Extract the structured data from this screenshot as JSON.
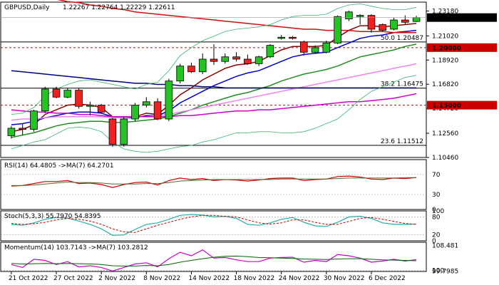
{
  "chart_data": [
    {
      "type": "candlestick",
      "title": "GBPUSD,Daily",
      "ohlc_header": "1.22267 1.22764 1.22229 1.22611",
      "ylim": [
        1.1046,
        1.2395
      ],
      "yticks": [
        "1.23180",
        "1.21020",
        "1.18920",
        "1.16820",
        "1.14720",
        "1.12560",
        "1.10460"
      ],
      "xticks": [
        "21 Oct 2022",
        "27 Oct 2022",
        "2 Nov 2022",
        "8 Nov 2022",
        "14 Nov 2022",
        "18 Nov 2022",
        "24 Nov 2022",
        "30 Nov 2022",
        "6 Dec 2022"
      ],
      "xtick_index": [
        0,
        4,
        8,
        12,
        16,
        20,
        24,
        28,
        32
      ],
      "colors": {
        "bull": "#22c322",
        "bear": "#ee2222"
      },
      "candles": [
        {
          "o": 1.1235,
          "h": 1.132,
          "l": 1.121,
          "c": 1.13
        },
        {
          "o": 1.13,
          "h": 1.134,
          "l": 1.124,
          "c": 1.129
        },
        {
          "o": 1.129,
          "h": 1.146,
          "l": 1.127,
          "c": 1.145
        },
        {
          "o": 1.145,
          "h": 1.166,
          "l": 1.143,
          "c": 1.164
        },
        {
          "o": 1.164,
          "h": 1.166,
          "l": 1.156,
          "c": 1.157
        },
        {
          "o": 1.157,
          "h": 1.165,
          "l": 1.156,
          "c": 1.163
        },
        {
          "o": 1.163,
          "h": 1.165,
          "l": 1.147,
          "c": 1.149
        },
        {
          "o": 1.149,
          "h": 1.153,
          "l": 1.141,
          "c": 1.15
        },
        {
          "o": 1.15,
          "h": 1.151,
          "l": 1.143,
          "c": 1.144
        },
        {
          "o": 1.138,
          "h": 1.139,
          "l": 1.114,
          "c": 1.116
        },
        {
          "o": 1.116,
          "h": 1.14,
          "l": 1.114,
          "c": 1.138
        },
        {
          "o": 1.138,
          "h": 1.152,
          "l": 1.136,
          "c": 1.15
        },
        {
          "o": 1.15,
          "h": 1.157,
          "l": 1.148,
          "c": 1.153
        },
        {
          "o": 1.153,
          "h": 1.156,
          "l": 1.137,
          "c": 1.138
        },
        {
          "o": 1.138,
          "h": 1.173,
          "l": 1.136,
          "c": 1.171
        },
        {
          "o": 1.171,
          "h": 1.186,
          "l": 1.169,
          "c": 1.184
        },
        {
          "o": 1.184,
          "h": 1.187,
          "l": 1.178,
          "c": 1.179
        },
        {
          "o": 1.179,
          "h": 1.195,
          "l": 1.177,
          "c": 1.19
        },
        {
          "o": 1.19,
          "h": 1.203,
          "l": 1.185,
          "c": 1.188
        },
        {
          "o": 1.188,
          "h": 1.195,
          "l": 1.186,
          "c": 1.192
        },
        {
          "o": 1.192,
          "h": 1.196,
          "l": 1.188,
          "c": 1.19
        },
        {
          "o": 1.19,
          "h": 1.194,
          "l": 1.185,
          "c": 1.186
        },
        {
          "o": 1.186,
          "h": 1.193,
          "l": 1.184,
          "c": 1.192
        },
        {
          "o": 1.192,
          "h": 1.203,
          "l": 1.191,
          "c": 1.202
        },
        {
          "o": 1.208,
          "h": 1.211,
          "l": 1.207,
          "c": 1.209
        },
        {
          "o": 1.209,
          "h": 1.21,
          "l": 1.207,
          "c": 1.208
        },
        {
          "o": 1.205,
          "h": 1.206,
          "l": 1.193,
          "c": 1.196
        },
        {
          "o": 1.196,
          "h": 1.202,
          "l": 1.195,
          "c": 1.2
        },
        {
          "o": 1.196,
          "h": 1.206,
          "l": 1.195,
          "c": 1.204
        },
        {
          "o": 1.204,
          "h": 1.228,
          "l": 1.203,
          "c": 1.227
        },
        {
          "o": 1.225,
          "h": 1.232,
          "l": 1.223,
          "c": 1.231
        },
        {
          "o": 1.227,
          "h": 1.229,
          "l": 1.22,
          "c": 1.228
        },
        {
          "o": 1.228,
          "h": 1.229,
          "l": 1.213,
          "c": 1.216
        },
        {
          "o": 1.22,
          "h": 1.221,
          "l": 1.214,
          "c": 1.215
        },
        {
          "o": 1.216,
          "h": 1.226,
          "l": 1.215,
          "c": 1.224
        },
        {
          "o": 1.224,
          "h": 1.228,
          "l": 1.22,
          "c": 1.222
        },
        {
          "o": 1.2227,
          "h": 1.2276,
          "l": 1.2223,
          "c": 1.2261
        }
      ],
      "overlays": [
        {
          "color": "#8b0000",
          "width": 1.5,
          "values": [
            1.127,
            1.129,
            1.133,
            1.142,
            1.146,
            1.15,
            1.151,
            1.15,
            1.148,
            1.14,
            1.139,
            1.14,
            1.143,
            1.142,
            1.15,
            1.159,
            1.165,
            1.172,
            1.177,
            1.182,
            1.185,
            1.186,
            1.188,
            1.193,
            1.198,
            1.201,
            1.201,
            1.201,
            1.202,
            1.209,
            1.215,
            1.219,
            1.219,
            1.218,
            1.219,
            1.22,
            1.221
          ]
        },
        {
          "color": "#0000cd",
          "width": 1.5,
          "values": [
            1.133,
            1.134,
            1.136,
            1.139,
            1.141,
            1.143,
            1.144,
            1.144,
            1.143,
            1.14,
            1.139,
            1.139,
            1.141,
            1.141,
            1.145,
            1.152,
            1.157,
            1.162,
            1.167,
            1.171,
            1.175,
            1.178,
            1.18,
            1.184,
            1.188,
            1.192,
            1.194,
            1.195,
            1.196,
            1.2,
            1.204,
            1.208,
            1.21,
            1.211,
            1.213,
            1.214,
            1.215
          ]
        },
        {
          "color": "#228b22",
          "width": 1.5,
          "values": [
            1.122,
            1.124,
            1.126,
            1.129,
            1.132,
            1.134,
            1.135,
            1.136,
            1.136,
            1.135,
            1.135,
            1.136,
            1.137,
            1.138,
            1.14,
            1.143,
            1.146,
            1.15,
            1.153,
            1.156,
            1.159,
            1.161,
            1.164,
            1.167,
            1.171,
            1.174,
            1.177,
            1.179,
            1.181,
            1.184,
            1.188,
            1.192,
            1.194,
            1.196,
            1.198,
            1.201,
            1.203
          ]
        },
        {
          "color": "#ee82ee",
          "width": 1.5,
          "values": [
            1.137,
            1.138,
            1.138,
            1.139,
            1.14,
            1.14,
            1.14,
            1.14,
            1.14,
            1.139,
            1.139,
            1.14,
            1.14,
            1.141,
            1.142,
            1.144,
            1.146,
            1.148,
            1.15,
            1.152,
            1.154,
            1.156,
            1.158,
            1.16,
            1.162,
            1.164,
            1.166,
            1.168,
            1.17,
            1.172,
            1.174,
            1.176,
            1.178,
            1.18,
            1.182,
            1.184,
            1.186
          ]
        },
        {
          "color": "#cc00cc",
          "width": 1.5,
          "values": [
            1.146,
            1.145,
            1.144,
            1.144,
            1.143,
            1.143,
            1.142,
            1.142,
            1.141,
            1.14,
            1.14,
            1.14,
            1.14,
            1.14,
            1.14,
            1.141,
            1.141,
            1.142,
            1.143,
            1.144,
            1.145,
            1.145,
            1.146,
            1.146,
            1.147,
            1.148,
            1.149,
            1.15,
            1.151,
            1.152,
            1.153,
            1.153,
            1.154,
            1.155,
            1.156,
            1.158,
            1.16
          ]
        },
        {
          "color": "#cc1111",
          "width": 1.5,
          "values": [
            1.246,
            1.245,
            1.244,
            1.243,
            1.242,
            1.24,
            1.239,
            1.237,
            1.236,
            1.234,
            1.233,
            1.231,
            1.23,
            1.229,
            1.228,
            1.227,
            1.226,
            1.225,
            1.224,
            1.223,
            1.222,
            1.221,
            1.22,
            1.219,
            1.218,
            1.217,
            1.216,
            1.216,
            1.215,
            1.215,
            1.215,
            1.214,
            1.214,
            1.214,
            1.213,
            1.213,
            1.213
          ]
        },
        {
          "color": "#000080",
          "width": 1.5,
          "values": [
            1.18,
            1.179,
            1.178,
            1.177,
            1.176,
            1.175,
            1.174,
            1.173,
            1.172,
            1.171,
            1.17,
            1.169,
            1.169,
            1.168,
            1.168,
            1.167,
            1.167,
            1.166,
            1.166,
            1.165,
            1.165,
            1.165,
            1.165,
            1.165,
            1.165,
            1.165,
            1.165,
            1.165,
            1.165,
            1.165,
            1.165,
            1.165,
            1.165,
            1.165,
            1.165,
            1.165,
            1.165
          ]
        },
        {
          "color": "#3cb371",
          "width": 0.8,
          "values": [
            1.142,
            1.143,
            1.148,
            1.158,
            1.164,
            1.168,
            1.171,
            1.172,
            1.17,
            1.168,
            1.166,
            1.164,
            1.168,
            1.17,
            1.18,
            1.193,
            1.2,
            1.206,
            1.21,
            1.214,
            1.216,
            1.217,
            1.218,
            1.22,
            1.224,
            1.227,
            1.228,
            1.228,
            1.229,
            1.234,
            1.237,
            1.238,
            1.236,
            1.234,
            1.233,
            1.233,
            1.235
          ]
        },
        {
          "color": "#3cb371",
          "width": 0.8,
          "values": [
            1.112,
            1.115,
            1.118,
            1.12,
            1.125,
            1.13,
            1.131,
            1.13,
            1.127,
            1.118,
            1.112,
            1.11,
            1.109,
            1.11,
            1.112,
            1.114,
            1.115,
            1.118,
            1.12,
            1.123,
            1.126,
            1.126,
            1.127,
            1.127,
            1.126,
            1.126,
            1.127,
            1.13,
            1.134,
            1.138,
            1.146,
            1.155,
            1.162,
            1.166,
            1.17,
            1.174,
            1.176
          ]
        }
      ],
      "levels": [
        {
          "value": 1.2,
          "label": "1.20000",
          "color": "#cc0000",
          "style": "dashed"
        },
        {
          "value": 1.15,
          "label": "1.15000",
          "color": "#cc0000",
          "style": "dashed"
        },
        {
          "value": 1.2049,
          "label": "50.0 1.20487",
          "color": "#000000",
          "style": "solid"
        },
        {
          "value": 1.1648,
          "label": "38.2 1.16475",
          "color": "#000000",
          "style": "solid"
        },
        {
          "value": 1.1151,
          "label": "23.6 1.11512",
          "color": "#000000",
          "style": "solid"
        }
      ],
      "last_price": {
        "value": 1.2261,
        "label": "1.22611"
      }
    },
    {
      "type": "line",
      "title": "RSI(14) 64.4805 ->MA(7) 64.2701",
      "ylim": [
        0,
        100
      ],
      "yticks": [
        "70",
        "30",
        "0"
      ],
      "hlines": [
        70,
        30
      ],
      "series": [
        {
          "color": "#cc0000",
          "values": [
            47,
            48,
            52,
            56,
            56,
            58,
            52,
            53,
            50,
            44,
            50,
            54,
            55,
            49,
            58,
            63,
            60,
            62,
            58,
            60,
            59,
            57,
            59,
            62,
            63,
            63,
            58,
            60,
            61,
            66,
            67,
            65,
            61,
            60,
            63,
            62,
            64
          ]
        },
        {
          "color": "#556b2f",
          "values": [
            48,
            48,
            49,
            51,
            53,
            55,
            54,
            54,
            53,
            51,
            51,
            51,
            52,
            52,
            54,
            57,
            58,
            59,
            60,
            60,
            60,
            60,
            60,
            60,
            61,
            61,
            61,
            61,
            61,
            62,
            63,
            63,
            63,
            63,
            63,
            64,
            64
          ]
        }
      ]
    },
    {
      "type": "line",
      "title": "Stoch(5,3,3) 55.7970 54.8395",
      "ylim": [
        0,
        100
      ],
      "yticks": [
        "100",
        "80",
        "20",
        "0"
      ],
      "hlines": [
        80,
        20
      ],
      "series": [
        {
          "color": "#20b2aa",
          "values": [
            55,
            52,
            60,
            72,
            78,
            76,
            66,
            55,
            40,
            18,
            20,
            38,
            55,
            60,
            72,
            85,
            88,
            86,
            80,
            82,
            75,
            55,
            52,
            60,
            72,
            78,
            62,
            50,
            48,
            62,
            80,
            82,
            75,
            60,
            55,
            55,
            56
          ]
        },
        {
          "color": "#cc0000",
          "values": [
            58,
            55,
            57,
            62,
            70,
            75,
            72,
            66,
            55,
            40,
            30,
            28,
            40,
            52,
            62,
            72,
            80,
            85,
            85,
            82,
            80,
            70,
            60,
            56,
            60,
            70,
            70,
            62,
            55,
            55,
            65,
            75,
            78,
            72,
            65,
            58,
            55
          ]
        }
      ]
    },
    {
      "type": "line",
      "title": "Momentum(14) 103.7143 ->MA(7) 103.2812",
      "ylim": [
        99.65,
        109.6
      ],
      "yticks": [
        "108.481",
        "100",
        "99.7985"
      ],
      "hlines": [
        100
      ],
      "series": [
        {
          "color": "#cc00cc",
          "values": [
            102.0,
            101.0,
            103.8,
            103.4,
            102.0,
            103.0,
            101.2,
            101.6,
            101.0,
            99.8,
            101.0,
            102.2,
            102.6,
            101.2,
            104.0,
            106.2,
            105.0,
            107.0,
            104.2,
            104.4,
            103.6,
            103.0,
            103.0,
            104.2,
            104.4,
            104.5,
            102.8,
            103.4,
            103.0,
            105.4,
            105.0,
            104.2,
            102.8,
            103.2,
            103.8,
            103.2,
            103.7
          ]
        },
        {
          "color": "#006400",
          "values": [
            102.4,
            102.2,
            102.3,
            102.4,
            102.3,
            102.4,
            102.3,
            102.2,
            102.0,
            101.6,
            101.5,
            101.5,
            101.7,
            101.6,
            102.0,
            102.8,
            103.4,
            104.0,
            104.5,
            104.8,
            104.9,
            104.7,
            104.4,
            104.3,
            104.2,
            104.1,
            103.9,
            103.8,
            103.7,
            103.9,
            104.0,
            104.0,
            103.8,
            103.6,
            103.5,
            103.4,
            103.3
          ]
        }
      ]
    }
  ]
}
